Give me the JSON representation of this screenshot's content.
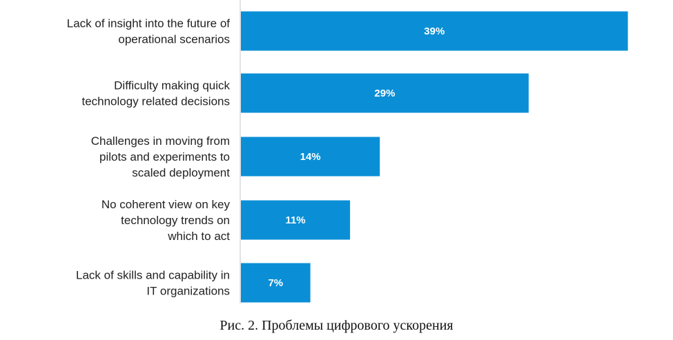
{
  "chart_data": {
    "type": "bar",
    "orientation": "horizontal",
    "categories": [
      "Lack of insight into the future of operational scenarios",
      "Difficulty making quick technology related decisions",
      "Challenges in moving from pilots and experiments to scaled deployment",
      "No coherent view on key technology trends on which to act",
      "Lack of skills and capability in IT organizations"
    ],
    "category_lines": [
      [
        "Lack of insight into the future of",
        "operational scenarios"
      ],
      [
        "Difficulty making quick",
        "technology related decisions"
      ],
      [
        "Challenges in moving from",
        "pilots and experiments to",
        "scaled deployment"
      ],
      [
        "No coherent view on key",
        "technology trends on",
        "which to act"
      ],
      [
        "Lack of skills and capability in",
        "IT organizations"
      ]
    ],
    "values": [
      39,
      29,
      14,
      11,
      7
    ],
    "value_labels": [
      "39%",
      "29%",
      "14%",
      "11%",
      "7%"
    ],
    "unit": "%",
    "xlim": [
      0,
      40
    ],
    "grid": false,
    "legend": "none",
    "bar_color": "#0a8fd6",
    "axis_color": "#d9d9d9"
  },
  "caption": "Рис. 2. Проблемы цифрового ускорения"
}
